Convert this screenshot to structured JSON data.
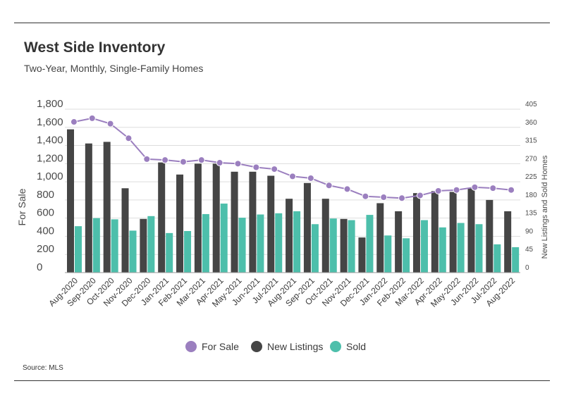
{
  "header": {
    "title": "West Side Inventory",
    "subtitle": "Two-Year, Monthly, Single-Family Homes"
  },
  "footer": {
    "source": "Source:  MLS"
  },
  "chart_data": {
    "type": "bar",
    "categories": [
      "Aug-2020",
      "Sep-2020",
      "Oct-2020",
      "Nov-2020",
      "Dec-2020",
      "Jan-2021",
      "Feb-2021",
      "Mar-2021",
      "Apr-2021",
      "May-2021",
      "Jun-2021",
      "Jul-2021",
      "Aug-2021",
      "Sep-2021",
      "Oct-2021",
      "Nov-2021",
      "Dec-2021",
      "Jan-2022",
      "Feb-2022",
      "Mar-2022",
      "Apr-2022",
      "May-2022",
      "Jun-2022",
      "Jul-2022",
      "Aug-2022"
    ],
    "series": [
      {
        "name": "For Sale",
        "type": "line",
        "axis": "left",
        "color": "#9b7fbf",
        "values": [
          1660,
          1700,
          1640,
          1480,
          1250,
          1240,
          1220,
          1240,
          1210,
          1200,
          1160,
          1140,
          1060,
          1040,
          960,
          920,
          840,
          830,
          820,
          850,
          900,
          910,
          940,
          930,
          910
        ]
      },
      {
        "name": "New Listings",
        "type": "bar",
        "axis": "right",
        "color": "#454545",
        "values": [
          355,
          320,
          324,
          209,
          133,
          273,
          243,
          270,
          270,
          250,
          250,
          240,
          183,
          222,
          183,
          133,
          87,
          172,
          152,
          197,
          202,
          200,
          210,
          180,
          152
        ]
      },
      {
        "name": "Sold",
        "type": "bar",
        "axis": "right",
        "color": "#4dbfab",
        "values": [
          115,
          135,
          132,
          104,
          140,
          98,
          103,
          145,
          171,
          136,
          144,
          147,
          152,
          120,
          134,
          130,
          143,
          92,
          85,
          130,
          112,
          123,
          120,
          70,
          63
        ]
      }
    ],
    "y_left": {
      "label": "For Sale",
      "ticks": [
        "1,800",
        "1,600",
        "1,400",
        "1,200",
        "1,000",
        "800",
        "600",
        "400",
        "200",
        "0"
      ],
      "range": [
        0,
        1800
      ]
    },
    "y_right": {
      "label": "New Listings and Sold Homes",
      "ticks": [
        "405",
        "360",
        "315",
        "270",
        "225",
        "180",
        "135",
        "90",
        "45",
        "0"
      ],
      "range": [
        0,
        405
      ]
    },
    "grid": true,
    "legend_position": "bottom"
  }
}
